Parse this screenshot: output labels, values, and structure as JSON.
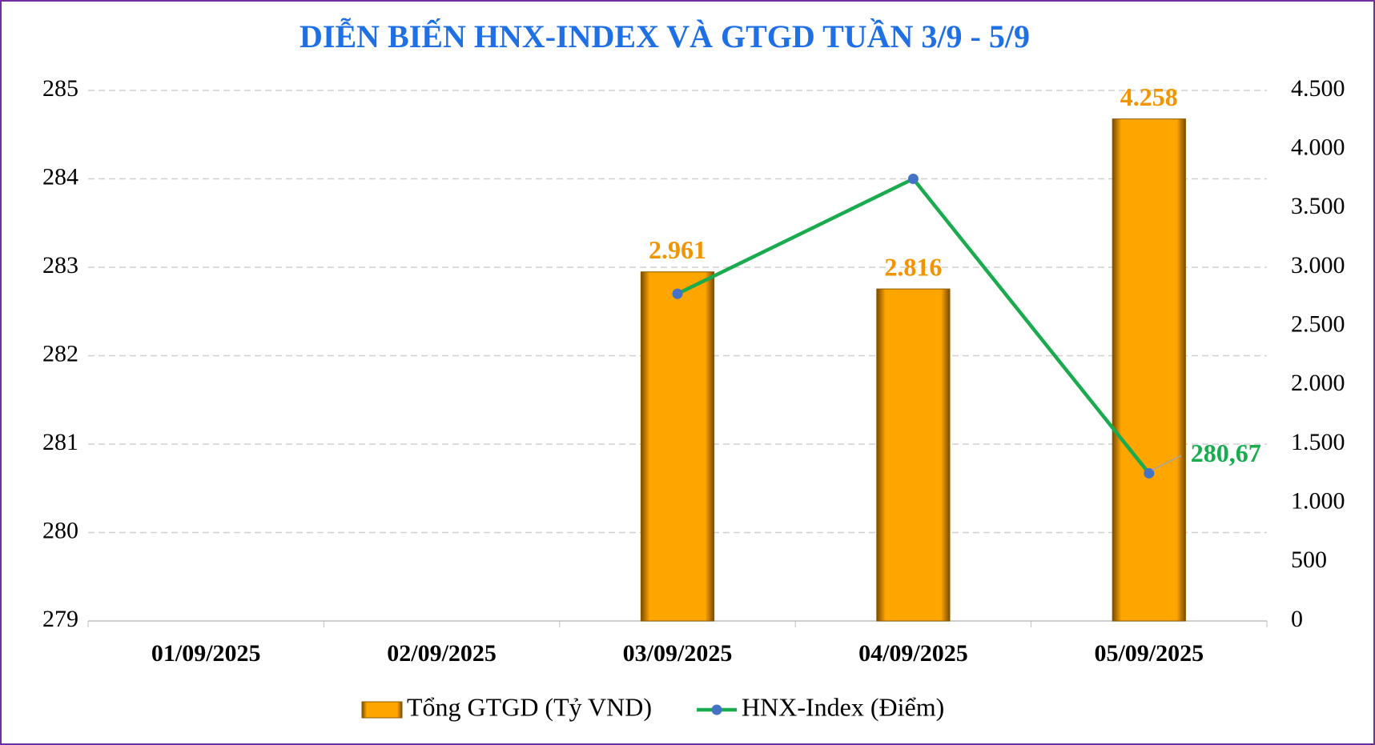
{
  "chart_data": {
    "type": "bar_line",
    "title": "DIỄN BIẾN HNX-INDEX VÀ GTGD TUẦN 3/9 - 5/9",
    "categories": [
      "01/09/2025",
      "02/09/2025",
      "03/09/2025",
      "04/09/2025",
      "05/09/2025"
    ],
    "series": [
      {
        "name": "Tổng GTGD (Tỷ VND)",
        "type": "bar",
        "axis": "y2",
        "color": "#ffa500",
        "label_color": "#f29400",
        "values": [
          null,
          null,
          2961,
          2816,
          4258
        ],
        "value_labels": [
          null,
          null,
          "2.961",
          "2.816",
          "4.258"
        ]
      },
      {
        "name": "HNX-Index (Điểm)",
        "type": "line",
        "axis": "y",
        "color": "#1aab4f",
        "marker_color": "#4472c4",
        "label_color": "#1aab4f",
        "values": [
          null,
          null,
          282.7,
          284.0,
          280.67
        ],
        "value_labels": [
          null,
          null,
          null,
          null,
          "280,67"
        ]
      }
    ],
    "ylim": [
      279,
      285
    ],
    "yticks": [
      279,
      280,
      281,
      282,
      283,
      284,
      285
    ],
    "y2lim": [
      0,
      4500
    ],
    "y2ticks": [
      0,
      500,
      {
        "value": 1000,
        "label": "1.000"
      },
      {
        "value": 1500,
        "label": "1.500"
      },
      {
        "value": 2000,
        "label": "2.000"
      },
      {
        "value": 2500,
        "label": "2.500"
      },
      {
        "value": 3000,
        "label": "3.000"
      },
      {
        "value": 3500,
        "label": "3.500"
      },
      {
        "value": 4000,
        "label": "4.000"
      },
      {
        "value": 4500,
        "label": "4.500"
      }
    ],
    "grid": true,
    "legend": "bottom"
  }
}
